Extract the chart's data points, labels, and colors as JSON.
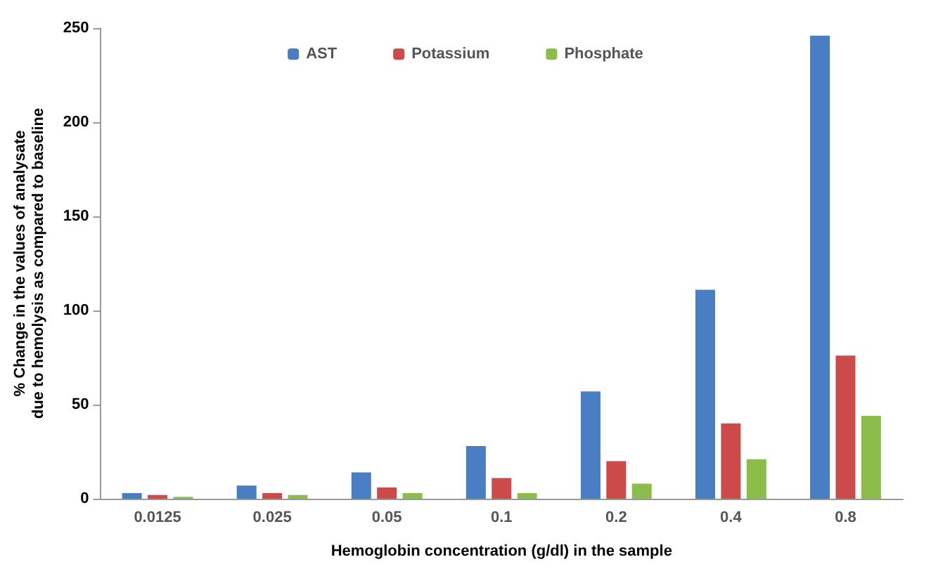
{
  "chart_data": {
    "type": "bar",
    "xlabel": "Hemoglobin concentration (g/dl) in the sample",
    "ylabel": "% Change in the values of analysate due to hemolysis as compared to baseline",
    "categories": [
      "0.0125",
      "0.025",
      "0.05",
      "0.1",
      "0.2",
      "0.4",
      "0.8"
    ],
    "series": [
      {
        "name": "AST",
        "color": "#4a7ec4",
        "values": [
          3,
          7,
          14,
          28,
          57,
          111,
          246
        ]
      },
      {
        "name": "Potassium",
        "color": "#cc4a4a",
        "values": [
          2,
          3,
          6,
          11,
          20,
          40,
          76
        ]
      },
      {
        "name": "Phosphate",
        "color": "#8cbd4a",
        "values": [
          1,
          2,
          3,
          3,
          8,
          21,
          44
        ]
      }
    ],
    "ylim": [
      0,
      250
    ],
    "yticks": [
      0,
      50,
      100,
      150,
      200,
      250
    ],
    "grid": false,
    "legend": "top"
  }
}
